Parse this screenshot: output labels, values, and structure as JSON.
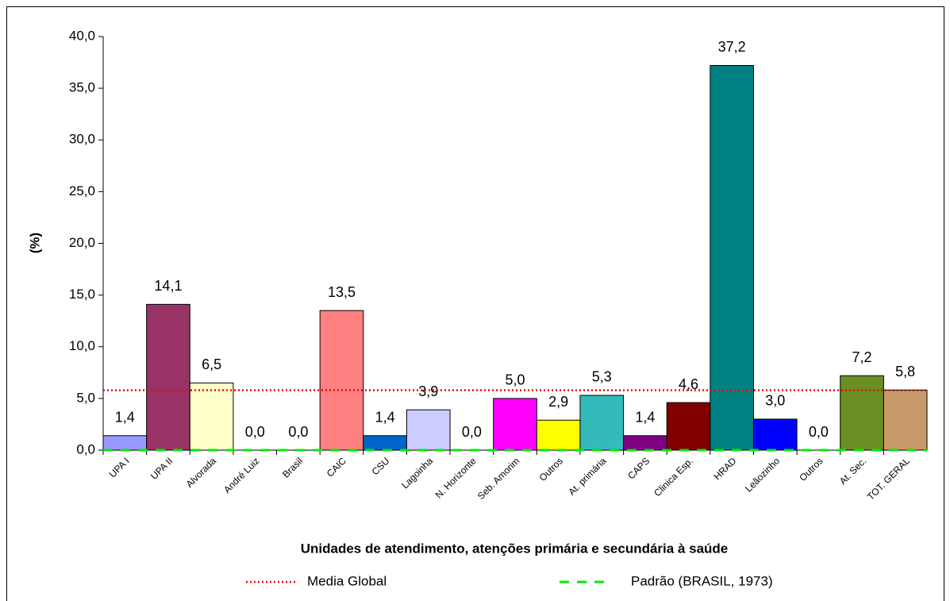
{
  "chart_data": {
    "type": "bar",
    "ylabel": "(%)",
    "xlabel": "Unidades de atendimento, atenções primária e secundária à saúde",
    "categories": [
      "UPA I",
      "UPA II",
      "Alvorada",
      "André Luiz",
      "Brasil",
      "CAIC",
      "CSU",
      "Lagoinha",
      "N. Horizonte",
      "Seb. Amorim",
      "Outros",
      "At. primária",
      "CAPS",
      "Clinica Esp.",
      "HRAD",
      "Leãozinho",
      "Outros",
      "At. Sec.",
      "TOT. GERAL"
    ],
    "values": [
      1.4,
      14.1,
      6.5,
      0.0,
      0.0,
      13.5,
      1.4,
      3.9,
      0.0,
      5.0,
      2.9,
      5.3,
      1.4,
      4.6,
      37.2,
      3.0,
      0.0,
      7.2,
      5.8
    ],
    "value_labels": [
      "1,4",
      "14,1",
      "6,5",
      "0,0",
      "0,0",
      "13,5",
      "1,4",
      "3,9",
      "0,0",
      "5,0",
      "2,9",
      "5,3",
      "1,4",
      "4,6",
      "37,2",
      "3,0",
      "0,0",
      "7,2",
      "5,8"
    ],
    "colors": [
      "#9999ff",
      "#993366",
      "#ffffcc",
      "#ffffff",
      "#ffffff",
      "#ff8080",
      "#0066cc",
      "#ccccff",
      "#ffffff",
      "#ff00ff",
      "#ffff00",
      "#33bbbb",
      "#800080",
      "#800000",
      "#008080",
      "#0000ff",
      "#ffffff",
      "#6b8e23",
      "#c89a6a"
    ],
    "ylim": [
      0,
      40
    ],
    "yticks": [
      {
        "value": 0,
        "label": "0,0"
      },
      {
        "value": 5,
        "label": "5,0"
      },
      {
        "value": 10,
        "label": "10,0"
      },
      {
        "value": 15,
        "label": "15,0"
      },
      {
        "value": 20,
        "label": "20,0"
      },
      {
        "value": 25,
        "label": "25,0"
      },
      {
        "value": 30,
        "label": "30,0"
      },
      {
        "value": 35,
        "label": "35,0"
      },
      {
        "value": 40,
        "label": "40,0"
      }
    ],
    "reference_lines": [
      {
        "name": "Media Global",
        "value": 5.8,
        "color": "#ff0000",
        "style": "dotted"
      },
      {
        "name": "Padrão (BRASIL, 1973)",
        "value": 0,
        "color": "#00ee00",
        "style": "dashed"
      }
    ]
  }
}
